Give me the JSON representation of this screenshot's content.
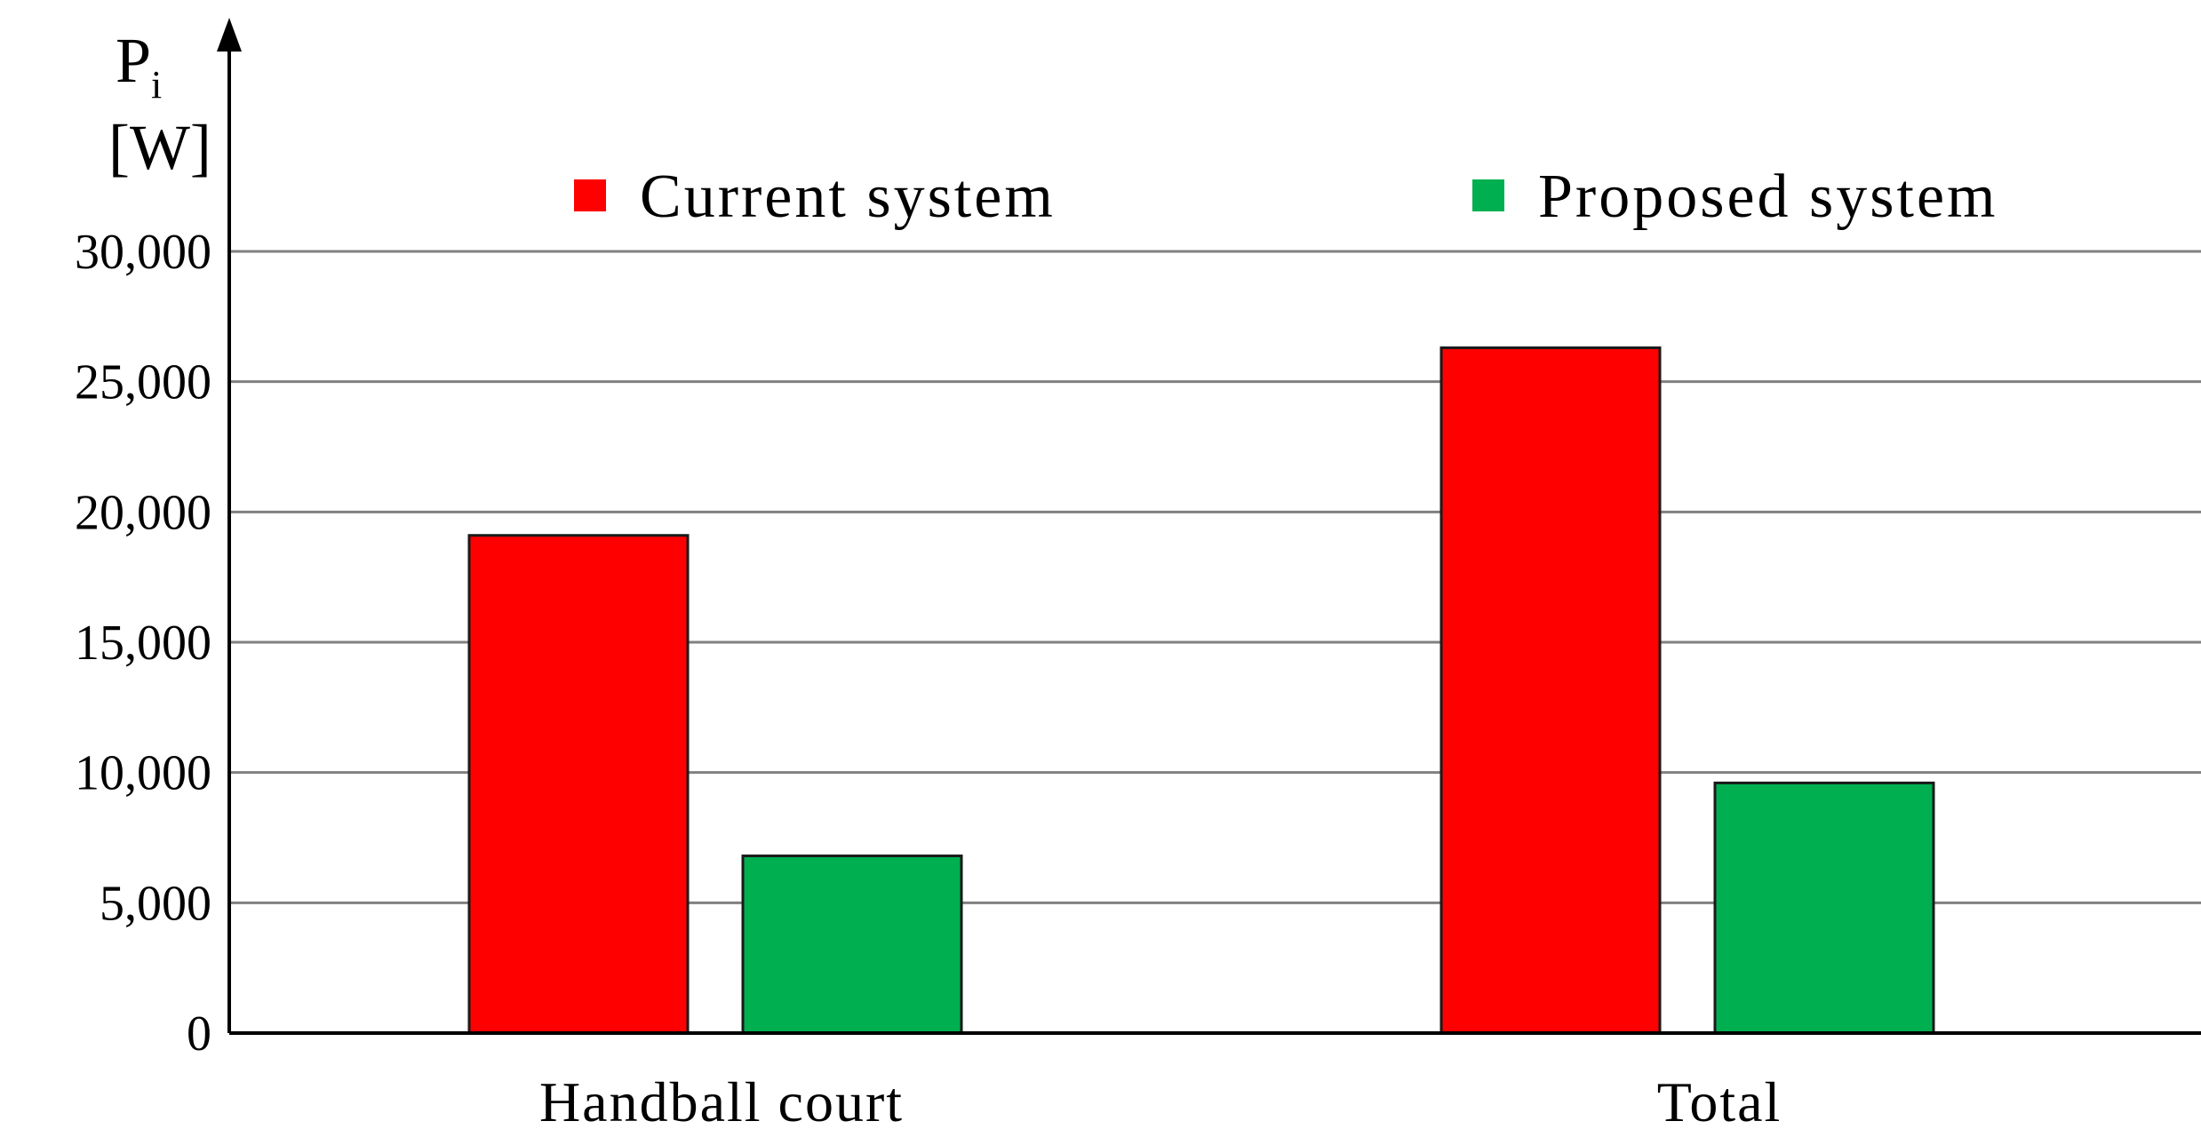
{
  "chart_data": {
    "type": "bar",
    "title": "",
    "xlabel": "",
    "ylabel": "P",
    "ylabel_sub": "i",
    "yunit": "[W]",
    "categories": [
      "Handball court",
      "Total"
    ],
    "series": [
      {
        "name": "Current system",
        "color": "#ff0000",
        "values": [
          19100,
          26300
        ]
      },
      {
        "name": "Proposed system",
        "color": "#00b050",
        "values": [
          6800,
          9600
        ]
      }
    ],
    "ylim": [
      0,
      30000
    ],
    "yticks": [
      0,
      5000,
      10000,
      15000,
      20000,
      25000,
      30000
    ],
    "ytick_labels": [
      "0",
      "5,000",
      "10,000",
      "15,000",
      "20,000",
      "25,000",
      "30,000"
    ],
    "grid": true,
    "legend_position": "top"
  }
}
